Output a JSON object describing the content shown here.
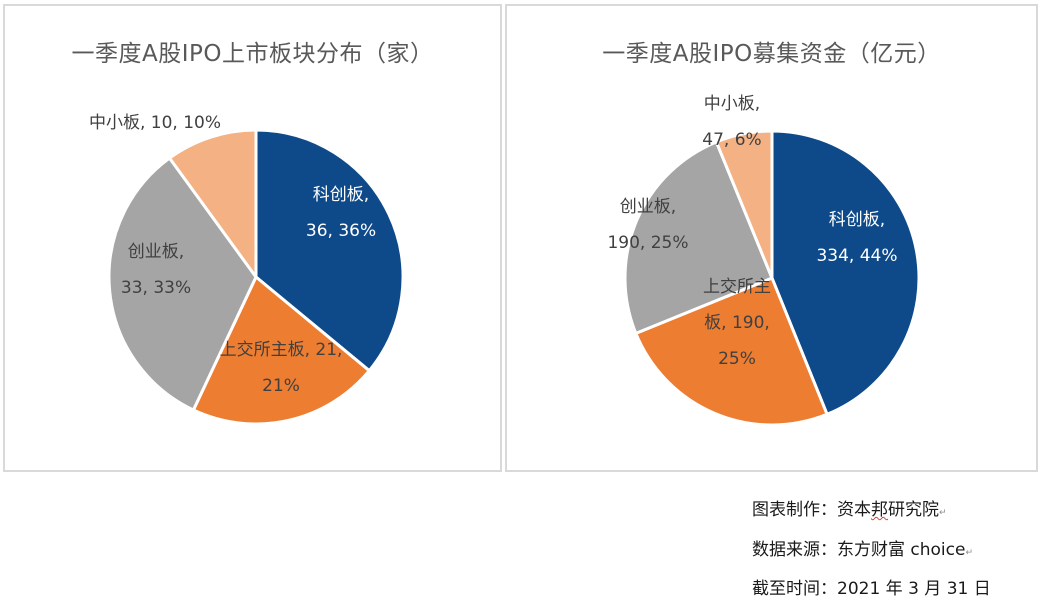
{
  "chart_data": [
    {
      "type": "pie",
      "title": "一季度A股IPO上市板块分布（家）",
      "slices": [
        {
          "name": "科创板",
          "value": 36,
          "percent": "36%",
          "color": "#0e4a8a",
          "label_lines": [
            "科创板,",
            "36, 36%"
          ],
          "light": true
        },
        {
          "name": "上交所主板",
          "value": 21,
          "percent": "21%",
          "color": "#ed7d31",
          "label_lines": [
            "上交所主板, 21,",
            "21%"
          ],
          "light": false
        },
        {
          "name": "创业板",
          "value": 33,
          "percent": "33%",
          "color": "#a5a5a5",
          "label_lines": [
            "创业板,",
            "33, 33%"
          ],
          "light": false
        },
        {
          "name": "中小板",
          "value": 10,
          "percent": "10%",
          "color": "#f4b183",
          "label_lines": [
            "中小板, 10, 10%"
          ],
          "light": false
        }
      ]
    },
    {
      "type": "pie",
      "title": "一季度A股IPO募集资金（亿元）",
      "slices": [
        {
          "name": "科创板",
          "value": 334,
          "percent": "44%",
          "color": "#0e4a8a",
          "label_lines": [
            "科创板,",
            "334, 44%"
          ],
          "light": true
        },
        {
          "name": "上交所主板",
          "value": 190,
          "percent": "25%",
          "color": "#ed7d31",
          "label_lines": [
            "上交所主",
            "板, 190,",
            "25%"
          ],
          "light": false
        },
        {
          "name": "创业板",
          "value": 190,
          "percent": "25%",
          "color": "#a5a5a5",
          "label_lines": [
            "创业板,",
            "190, 25%"
          ],
          "light": false
        },
        {
          "name": "中小板",
          "value": 47,
          "percent": "6%",
          "color": "#f4b183",
          "label_lines": [
            "中小板,",
            "47, 6%"
          ],
          "light": false
        }
      ]
    }
  ],
  "footer": {
    "maker_label": "图表制作：",
    "maker_pre": "资本",
    "maker_mark": "邦",
    "maker_post": "研究院",
    "source": "数据来源：东方财富 choice",
    "cutoff": "截至时间：2021 年 3 月 31 日",
    "return_mark": "↵"
  }
}
